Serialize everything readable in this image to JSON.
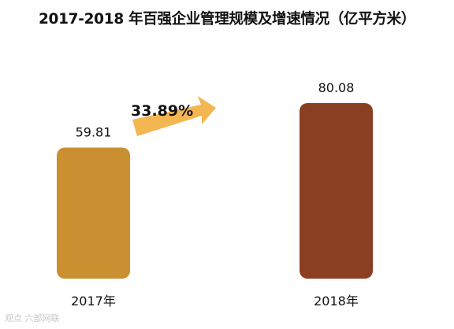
{
  "chart_data": {
    "type": "bar",
    "title": "2017-2018 年百强企业管理规模及增速情况（亿平方米）",
    "categories": [
      "2017年",
      "2018年"
    ],
    "values": [
      59.81,
      80.08
    ],
    "value_labels": [
      "59.81",
      "80.08"
    ],
    "colors": [
      "#c98f31",
      "#8b3f22"
    ],
    "growth": {
      "label": "33.89%",
      "value": 33.89,
      "arrow_color": "#f4b650"
    },
    "ylim": [
      0,
      100
    ],
    "grid": false,
    "legend": "none",
    "xlabel": "",
    "ylabel": ""
  },
  "watermark": "观点 六部网联"
}
